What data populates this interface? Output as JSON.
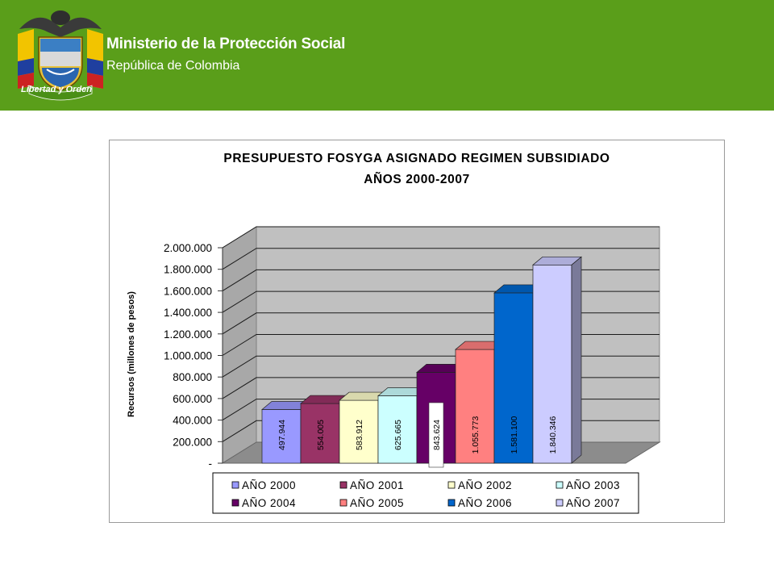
{
  "header": {
    "ministry": "Ministerio de la Protección Social",
    "republic": "República de Colombia",
    "motto": "Libertad y Orden",
    "background": "#5a9e1a"
  },
  "chart_data": {
    "type": "bar",
    "title": "PRESUPUESTO FOSYGA ASIGNADO REGIMEN SUBSIDIADO",
    "subtitle": "AÑOS 2000-2007",
    "xlabel": "",
    "ylabel": "Recursos (millones de pesos)",
    "ylim": [
      0,
      2000000
    ],
    "yticks": [
      "-",
      "200.000",
      "400.000",
      "600.000",
      "800.000",
      "1.000.000",
      "1.200.000",
      "1.400.000",
      "1.600.000",
      "1.800.000",
      "2.000.000"
    ],
    "grid": true,
    "legend_position": "bottom",
    "series": [
      {
        "name": "AÑO 2000",
        "value": 497944,
        "label": "497.944",
        "color": "#9999ff"
      },
      {
        "name": "AÑO 2001",
        "value": 554005,
        "label": "554.005",
        "color": "#993366"
      },
      {
        "name": "AÑO 2002",
        "value": 583912,
        "label": "583.912",
        "color": "#ffffcc"
      },
      {
        "name": "AÑO 2003",
        "value": 625665,
        "label": "625.665",
        "color": "#ccffff"
      },
      {
        "name": "AÑO 2004",
        "value": 843624,
        "label": "843.624",
        "color": "#660066"
      },
      {
        "name": "AÑO 2005",
        "value": 1055773,
        "label": "1.055.773",
        "color": "#ff8080"
      },
      {
        "name": "AÑO 2006",
        "value": 1581100,
        "label": "1.581.100",
        "color": "#0066cc"
      },
      {
        "name": "AÑO 2007",
        "value": 1840346,
        "label": "1.840.346",
        "color": "#ccccff"
      }
    ]
  }
}
